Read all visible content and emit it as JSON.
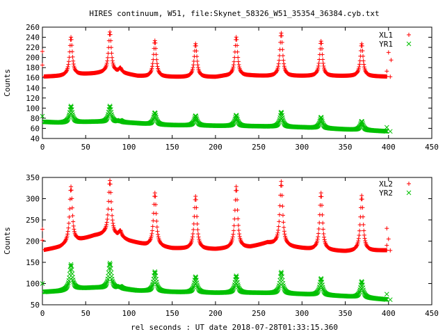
{
  "chart_data": {
    "title": "HIRES continuum, W51, file:Skynet_58326_W51_35354_36384.cyb.txt",
    "xlabel": "rel seconds : UT date 2018-07-28T01:33:15.360",
    "colors": {
      "red": "#ff0000",
      "green": "#00c000"
    },
    "panels": [
      {
        "type": "scatter",
        "ylabel": "Counts",
        "xlim": [
          0,
          450
        ],
        "ylim": [
          40,
          260
        ],
        "xticks": [
          0,
          50,
          100,
          150,
          200,
          250,
          300,
          350,
          400,
          450
        ],
        "yticks": [
          40,
          60,
          80,
          100,
          120,
          140,
          160,
          180,
          200,
          220,
          240,
          260
        ],
        "legend_position": "top-right",
        "series": [
          {
            "name": "XL1",
            "marker": "plus",
            "color": "#ff0000",
            "baseline_points": [
              [
                0,
                162
              ],
              [
                20,
                163
              ],
              [
                40,
                166
              ],
              [
                60,
                168
              ],
              [
                72,
                170
              ],
              [
                90,
                170
              ],
              [
                95,
                168
              ],
              [
                110,
                163
              ],
              [
                120,
                162
              ],
              [
                160,
                161
              ],
              [
                200,
                161
              ],
              [
                210,
                163
              ],
              [
                240,
                164
              ],
              [
                260,
                163
              ],
              [
                280,
                163
              ],
              [
                310,
                163
              ],
              [
                350,
                163
              ],
              [
                365,
                163
              ],
              [
                400,
                162
              ]
            ],
            "peaks": [
              [
                33,
                240
              ],
              [
                78,
                250
              ],
              [
                90,
                178
              ],
              [
                130,
                233
              ],
              [
                177,
                227
              ],
              [
                224,
                240
              ],
              [
                276,
                248
              ],
              [
                322,
                232
              ],
              [
                369,
                227
              ]
            ],
            "calibration_points": [
              [
                0,
                212
              ],
              [
                0,
                185
              ],
              [
                400,
                210
              ],
              [
                403,
                195
              ],
              [
                402,
                162
              ],
              [
                398,
                173
              ]
            ]
          },
          {
            "name": "YR1",
            "marker": "cross",
            "color": "#00c000",
            "baseline_points": [
              [
                0,
                73
              ],
              [
                20,
                71
              ],
              [
                40,
                72
              ],
              [
                60,
                73
              ],
              [
                90,
                72
              ],
              [
                110,
                70
              ],
              [
                130,
                67
              ],
              [
                160,
                66
              ],
              [
                200,
                65
              ],
              [
                250,
                64
              ],
              [
                300,
                62
              ],
              [
                350,
                58
              ],
              [
                400,
                54
              ]
            ],
            "peaks": [
              [
                33,
                104
              ],
              [
                78,
                104
              ],
              [
                90,
                75
              ],
              [
                130,
                91
              ],
              [
                177,
                85
              ],
              [
                224,
                86
              ],
              [
                276,
                92
              ],
              [
                322,
                82
              ],
              [
                369,
                74
              ]
            ],
            "calibration_points": [
              [
                0,
                84
              ],
              [
                398,
                62
              ],
              [
                402,
                54
              ]
            ]
          }
        ]
      },
      {
        "type": "scatter",
        "ylabel": "Counts",
        "xlim": [
          0,
          450
        ],
        "ylim": [
          50,
          350
        ],
        "xticks": [
          0,
          50,
          100,
          150,
          200,
          250,
          300,
          350,
          400,
          450
        ],
        "yticks": [
          50,
          100,
          150,
          200,
          250,
          300,
          350
        ],
        "legend_position": "top-right",
        "series": [
          {
            "name": "XL2",
            "marker": "plus",
            "color": "#ff0000",
            "baseline_points": [
              [
                0,
                178
              ],
              [
                20,
                185
              ],
              [
                40,
                200
              ],
              [
                60,
                212
              ],
              [
                72,
                215
              ],
              [
                90,
                208
              ],
              [
                100,
                200
              ],
              [
                120,
                190
              ],
              [
                150,
                182
              ],
              [
                200,
                180
              ],
              [
                240,
                185
              ],
              [
                260,
                195
              ],
              [
                290,
                185
              ],
              [
                310,
                180
              ],
              [
                350,
                175
              ],
              [
                400,
                178
              ]
            ],
            "peaks": [
              [
                33,
                328
              ],
              [
                78,
                342
              ],
              [
                90,
                222
              ],
              [
                130,
                313
              ],
              [
                177,
                305
              ],
              [
                224,
                328
              ],
              [
                276,
                340
              ],
              [
                322,
                313
              ],
              [
                369,
                307
              ]
            ],
            "calibration_points": [
              [
                0,
                228
              ],
              [
                0,
                202
              ],
              [
                398,
                230
              ],
              [
                400,
                205
              ],
              [
                402,
                178
              ],
              [
                398,
                190
              ]
            ]
          },
          {
            "name": "YR2",
            "marker": "cross",
            "color": "#00c000",
            "baseline_points": [
              [
                0,
                80
              ],
              [
                20,
                82
              ],
              [
                40,
                88
              ],
              [
                60,
                90
              ],
              [
                90,
                88
              ],
              [
                110,
                83
              ],
              [
                150,
                80
              ],
              [
                200,
                78
              ],
              [
                250,
                78
              ],
              [
                300,
                75
              ],
              [
                350,
                70
              ],
              [
                400,
                62
              ]
            ],
            "peaks": [
              [
                33,
                145
              ],
              [
                78,
                148
              ],
              [
                90,
                92
              ],
              [
                130,
                128
              ],
              [
                177,
                116
              ],
              [
                224,
                118
              ],
              [
                276,
                127
              ],
              [
                322,
                112
              ],
              [
                369,
                105
              ]
            ],
            "calibration_points": [
              [
                0,
                100
              ],
              [
                398,
                75
              ],
              [
                402,
                62
              ]
            ]
          }
        ]
      }
    ]
  }
}
